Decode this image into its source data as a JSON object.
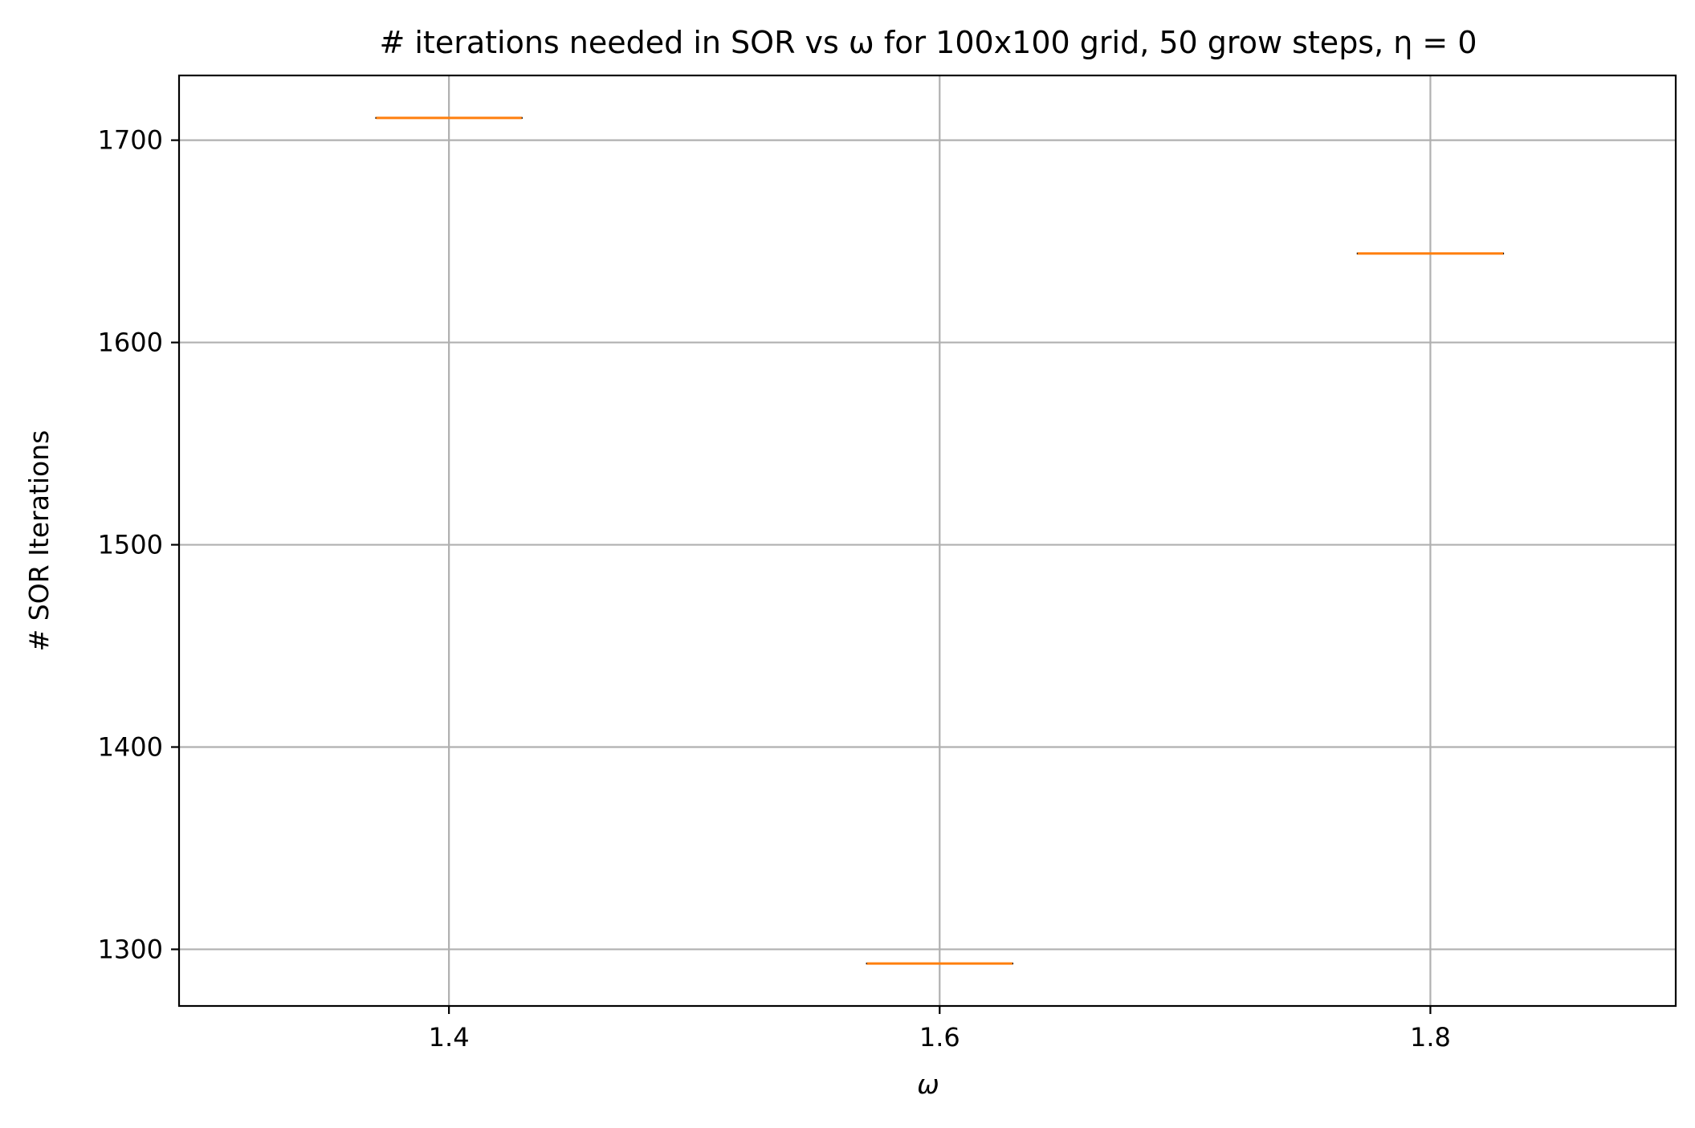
{
  "chart_data": {
    "type": "box",
    "title": "# iterations needed in SOR vs ω for 100x100 grid, 50 grow steps, η = 0",
    "xlabel": "ω",
    "ylabel": "# SOR Iterations",
    "xlim": [
      1.29,
      1.9
    ],
    "ylim": [
      1272,
      1732
    ],
    "xticks": [
      1.4,
      1.6,
      1.8
    ],
    "xtick_labels": [
      "1.4",
      "1.6",
      "1.8"
    ],
    "yticks": [
      1300,
      1400,
      1500,
      1600,
      1700
    ],
    "ytick_labels": [
      "1300",
      "1400",
      "1500",
      "1600",
      "1700"
    ],
    "grid": true,
    "box_width": 0.06,
    "boxes": [
      {
        "x": 1.4,
        "median": 1711
      },
      {
        "x": 1.6,
        "median": 1293
      },
      {
        "x": 1.8,
        "median": 1644
      }
    ],
    "colors": {
      "median": "#ff7f0e",
      "box": "#000000",
      "grid": "#b0b0b0"
    }
  }
}
